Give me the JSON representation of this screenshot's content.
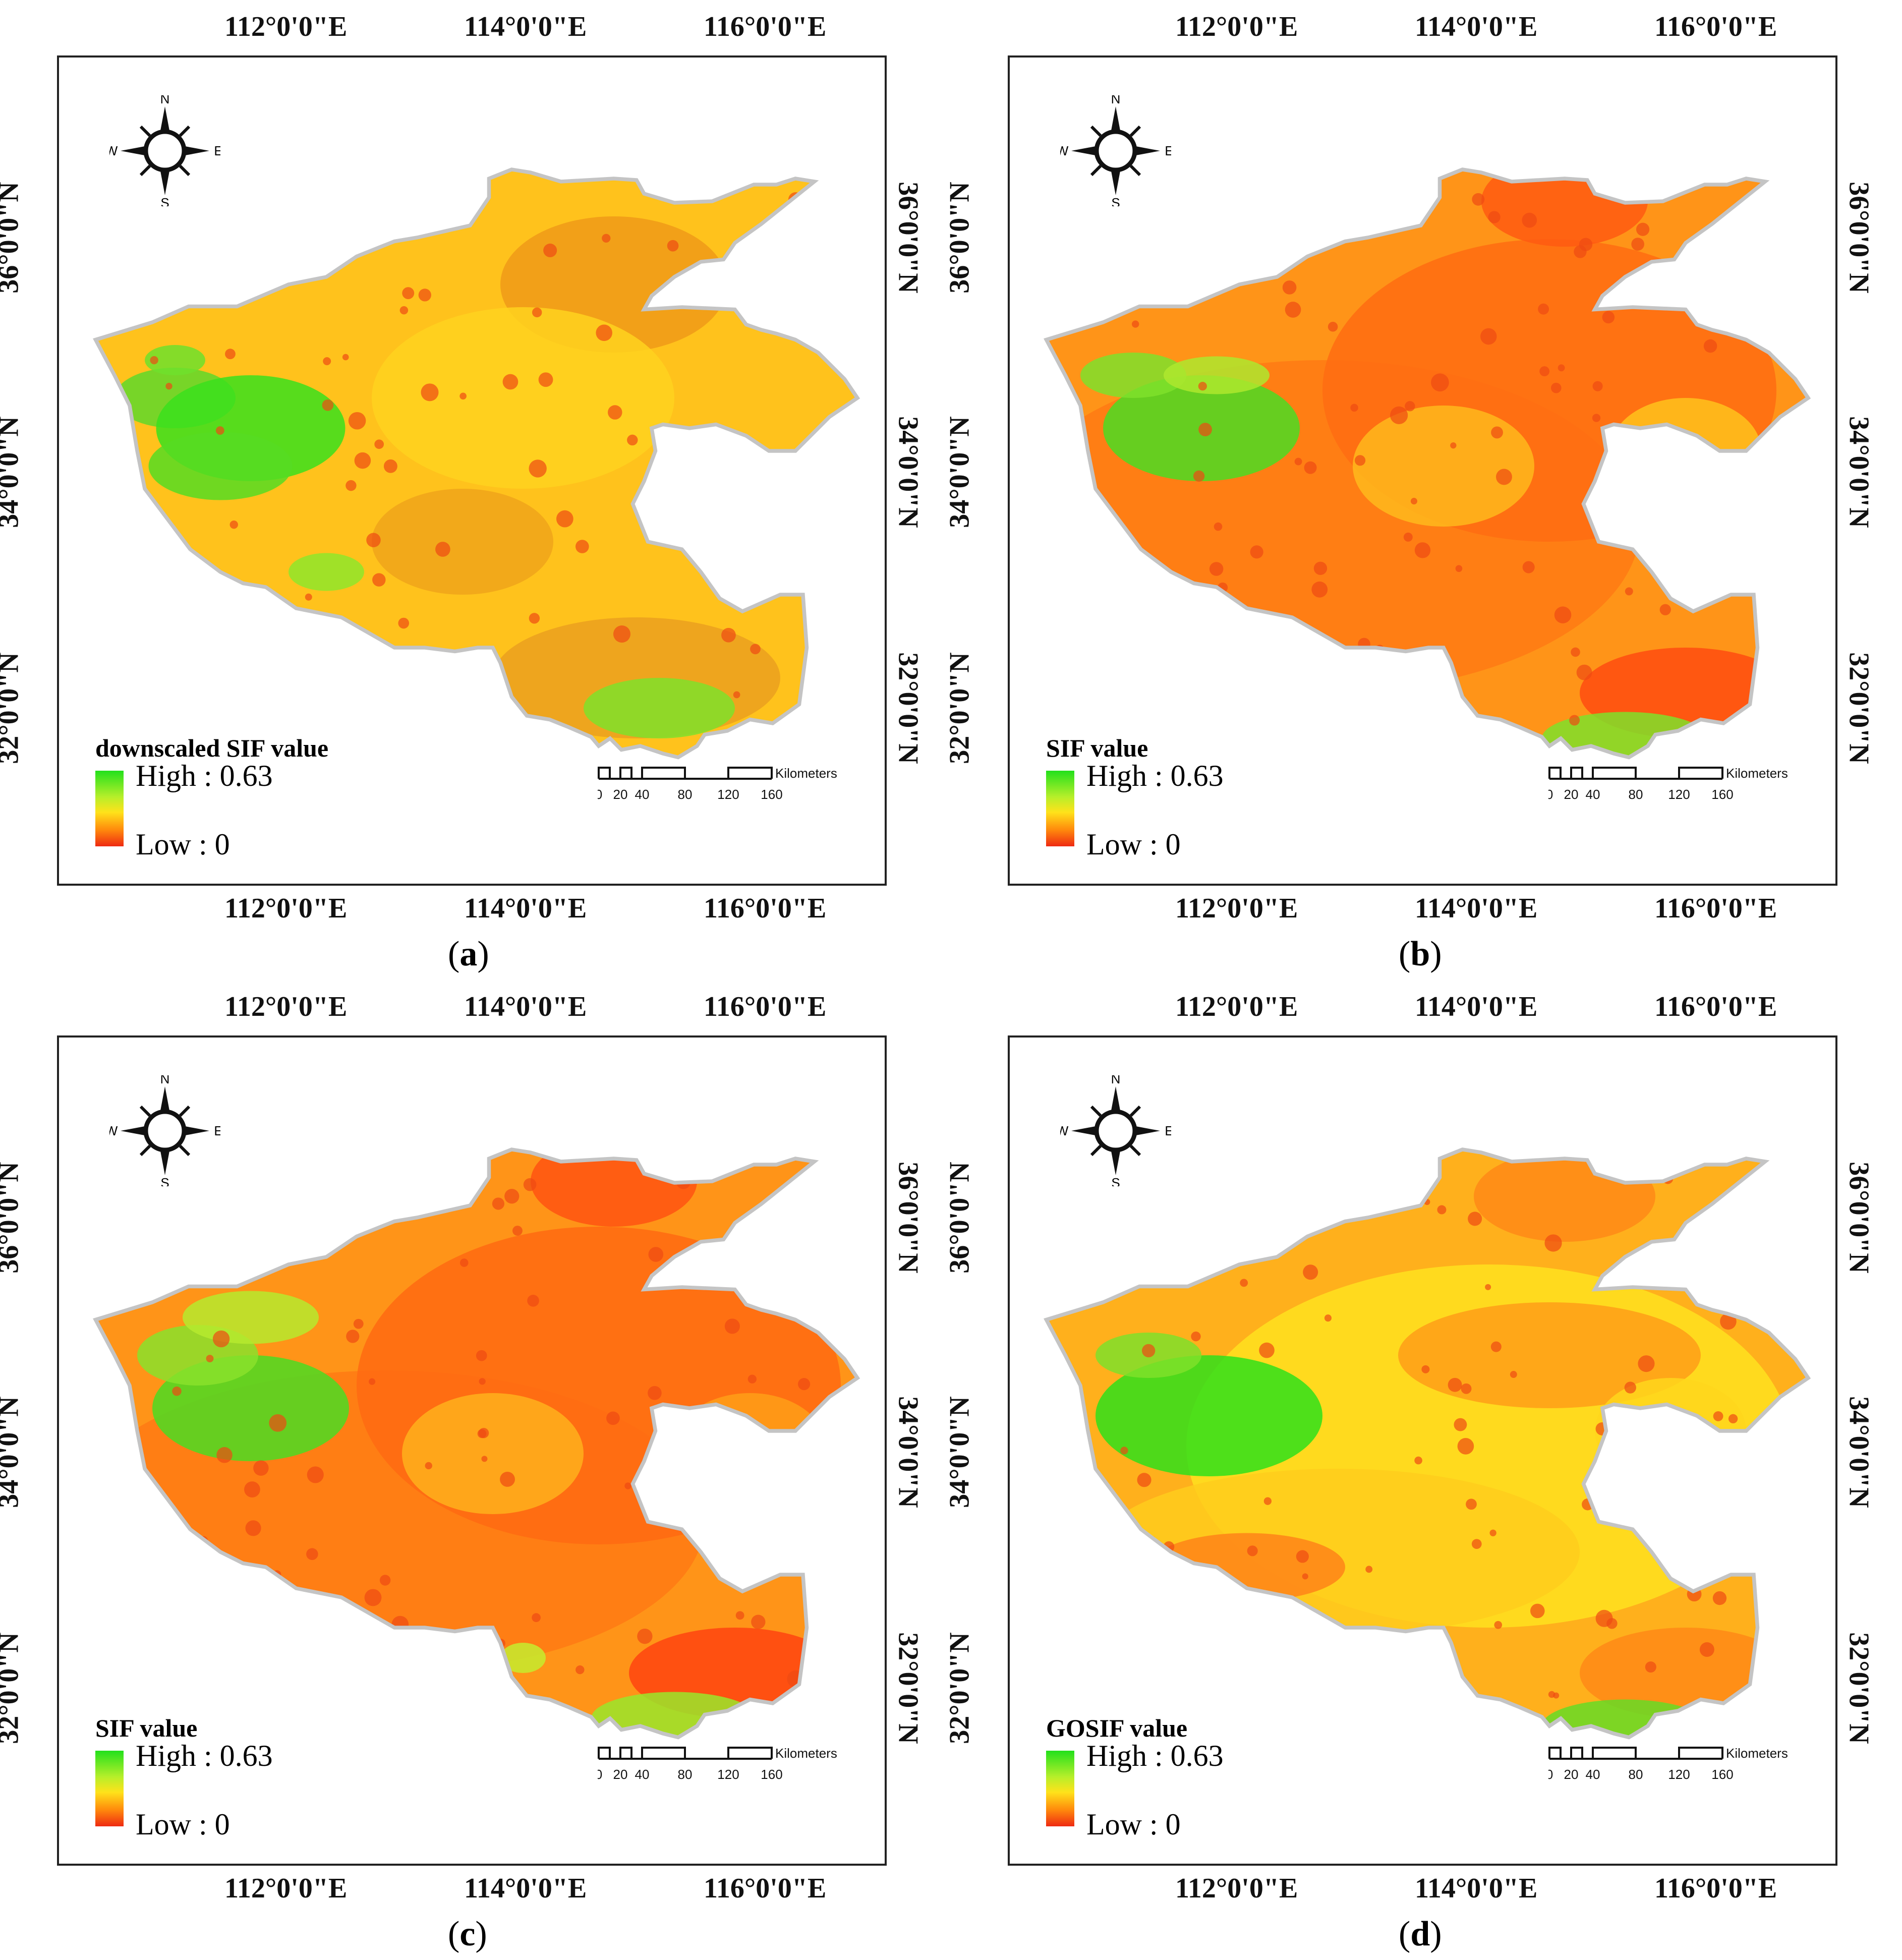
{
  "lon_ticks": [
    "112°0'0\"E",
    "114°0'0\"E",
    "116°0'0\"E"
  ],
  "lat_ticks": [
    "36°0'0\"N",
    "34°0'0\"N",
    "32°0'0\"N"
  ],
  "compass": {
    "n": "N",
    "s": "S",
    "e": "E",
    "w": "W"
  },
  "scale_bar": {
    "unit": "Kilometers",
    "labels": [
      "0",
      "20",
      "40",
      "80",
      "120",
      "160"
    ]
  },
  "colors": {
    "high": "#22e01c",
    "mid": "#ffe21a",
    "orange": "#ff8a0c",
    "low": "#ee2a12",
    "border": "#c4c4c4"
  },
  "panels": [
    {
      "letter": "a",
      "legend_title": "downscaled SIF value",
      "high_label": "High : 0.63",
      "low_label": "Low : 0"
    },
    {
      "letter": "b",
      "legend_title": "SIF value",
      "high_label": "High : 0.63",
      "low_label": "Low : 0"
    },
    {
      "letter": "c",
      "legend_title": "SIF value",
      "high_label": "High : 0.63",
      "low_label": "Low : 0"
    },
    {
      "letter": "d",
      "legend_title": "GOSIF value",
      "high_label": "High : 0.63",
      "low_label": "Low : 0"
    }
  ]
}
